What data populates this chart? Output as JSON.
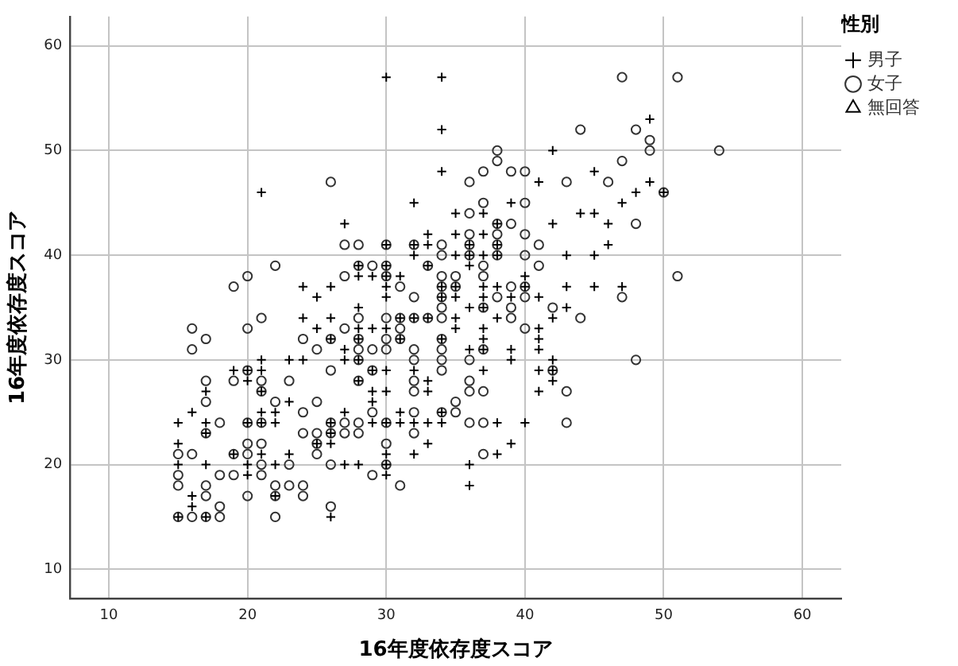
{
  "chart_data": {
    "type": "scatter",
    "xlabel": "16年度依存度スコア",
    "ylabel": "16年度依存度スコア",
    "legend_title": "性別",
    "xlim": [
      7.2,
      62.8
    ],
    "ylim": [
      7.2,
      62.8
    ],
    "xticks": [
      10,
      20,
      30,
      40,
      50,
      60
    ],
    "yticks": [
      10,
      20,
      30,
      40,
      50,
      60
    ],
    "grid": true,
    "legend": "top right",
    "series": [
      {
        "name": "男子",
        "color": "#000000",
        "marker": "cross",
        "x": [
          30,
          34,
          34,
          34,
          21,
          32,
          35,
          27,
          33,
          35,
          30,
          32,
          33,
          32,
          35,
          28,
          30,
          33,
          28,
          29,
          30,
          31,
          24,
          26,
          30,
          34,
          35,
          25,
          30,
          34,
          35,
          28,
          24,
          26,
          31,
          32,
          33,
          35,
          49,
          42,
          45,
          41,
          49,
          48,
          50,
          39,
          47,
          37,
          44,
          45,
          38,
          42,
          46,
          37,
          36,
          38,
          46,
          36,
          37,
          38,
          43,
          45,
          36,
          40,
          37,
          38,
          40,
          43,
          45,
          47,
          37,
          39,
          41,
          36,
          37,
          43,
          38,
          42,
          25,
          28,
          29,
          30,
          35,
          26,
          28,
          31,
          34,
          27,
          21,
          23,
          24,
          27,
          28,
          19,
          20,
          21,
          29,
          30,
          32,
          20,
          28,
          33,
          17,
          21,
          29,
          30,
          33,
          23,
          29,
          16,
          21,
          22,
          27,
          31,
          34,
          15,
          17,
          20,
          21,
          22,
          26,
          29,
          30,
          31,
          32,
          33,
          34,
          17,
          26,
          15,
          25,
          26,
          33,
          19,
          21,
          23,
          30,
          32,
          15,
          17,
          20,
          22,
          27,
          28,
          30,
          20,
          30,
          16,
          22,
          16,
          15,
          17,
          26,
          37,
          41,
          37,
          41,
          36,
          37,
          39,
          41,
          39,
          42,
          37,
          41,
          42,
          42,
          41,
          38,
          40,
          39,
          38,
          36,
          36
        ],
        "values": [
          57,
          57,
          52,
          48,
          46,
          45,
          44,
          43,
          42,
          42,
          41,
          41,
          41,
          40,
          40,
          39,
          39,
          39,
          38,
          38,
          38,
          38,
          37,
          37,
          37,
          37,
          37,
          36,
          36,
          36,
          36,
          35,
          34,
          34,
          34,
          34,
          34,
          34,
          53,
          50,
          48,
          47,
          47,
          46,
          46,
          45,
          45,
          44,
          44,
          44,
          43,
          43,
          43,
          42,
          41,
          41,
          41,
          40,
          40,
          40,
          40,
          40,
          39,
          38,
          37,
          37,
          37,
          37,
          37,
          37,
          36,
          36,
          36,
          35,
          35,
          35,
          34,
          34,
          33,
          33,
          33,
          33,
          33,
          32,
          32,
          32,
          32,
          31,
          30,
          30,
          30,
          30,
          30,
          29,
          29,
          29,
          29,
          29,
          29,
          28,
          28,
          28,
          27,
          27,
          27,
          27,
          27,
          26,
          26,
          25,
          25,
          25,
          25,
          25,
          25,
          24,
          24,
          24,
          24,
          24,
          24,
          24,
          24,
          24,
          24,
          24,
          24,
          23,
          23,
          22,
          22,
          22,
          22,
          21,
          21,
          21,
          21,
          21,
          20,
          20,
          20,
          20,
          20,
          20,
          20,
          19,
          19,
          17,
          17,
          16,
          15,
          15,
          15,
          33,
          33,
          32,
          32,
          31,
          31,
          31,
          31,
          30,
          30,
          29,
          29,
          29,
          28,
          27,
          24,
          24,
          22,
          21,
          20,
          18
        ]
      },
      {
        "name": "女子",
        "color": "#333333",
        "marker": "circle",
        "x": [
          26,
          27,
          28,
          30,
          32,
          34,
          34,
          22,
          28,
          29,
          30,
          33,
          20,
          27,
          30,
          34,
          35,
          19,
          31,
          34,
          35,
          32,
          34,
          34,
          21,
          28,
          30,
          31,
          32,
          33,
          34,
          47,
          51,
          44,
          48,
          49,
          38,
          49,
          54,
          38,
          47,
          37,
          39,
          40,
          36,
          43,
          46,
          50,
          37,
          40,
          36,
          38,
          39,
          48,
          36,
          38,
          40,
          36,
          38,
          41,
          36,
          38,
          40,
          37,
          41,
          37,
          51,
          39,
          40,
          38,
          40,
          47,
          37,
          39,
          42,
          39,
          44,
          16,
          20,
          27,
          31,
          17,
          24,
          26,
          28,
          30,
          31,
          34,
          16,
          25,
          28,
          29,
          30,
          32,
          34,
          28,
          32,
          34,
          20,
          26,
          29,
          34,
          17,
          19,
          21,
          23,
          28,
          32,
          21,
          32,
          17,
          22,
          25,
          35,
          24,
          29,
          32,
          34,
          35,
          18,
          20,
          21,
          26,
          27,
          28,
          30,
          17,
          24,
          25,
          26,
          27,
          28,
          32,
          20,
          21,
          25,
          30,
          15,
          16,
          19,
          20,
          25,
          21,
          23,
          26,
          30,
          15,
          18,
          19,
          21,
          29,
          15,
          17,
          22,
          23,
          24,
          31,
          17,
          20,
          22,
          24,
          18,
          26,
          15,
          16,
          17,
          18,
          22,
          40,
          37,
          36,
          48,
          42,
          36,
          36,
          37,
          43,
          36,
          37,
          43,
          37
        ],
        "values": [
          47,
          41,
          41,
          41,
          41,
          41,
          40,
          39,
          39,
          39,
          39,
          39,
          38,
          38,
          38,
          38,
          38,
          37,
          37,
          37,
          37,
          36,
          36,
          35,
          34,
          34,
          34,
          34,
          34,
          34,
          34,
          57,
          57,
          52,
          52,
          51,
          50,
          50,
          50,
          49,
          49,
          48,
          48,
          48,
          47,
          47,
          47,
          46,
          45,
          45,
          44,
          43,
          43,
          43,
          42,
          42,
          42,
          41,
          41,
          41,
          40,
          40,
          40,
          39,
          39,
          38,
          38,
          37,
          37,
          36,
          36,
          36,
          35,
          35,
          35,
          34,
          34,
          33,
          33,
          33,
          33,
          32,
          32,
          32,
          32,
          32,
          32,
          32,
          31,
          31,
          31,
          31,
          31,
          31,
          31,
          30,
          30,
          30,
          29,
          29,
          29,
          29,
          28,
          28,
          28,
          28,
          28,
          28,
          27,
          27,
          26,
          26,
          26,
          26,
          25,
          25,
          25,
          25,
          25,
          24,
          24,
          24,
          24,
          24,
          24,
          24,
          23,
          23,
          23,
          23,
          23,
          23,
          23,
          22,
          22,
          22,
          22,
          21,
          21,
          21,
          21,
          21,
          20,
          20,
          20,
          20,
          19,
          19,
          19,
          19,
          19,
          18,
          18,
          18,
          18,
          18,
          18,
          17,
          17,
          17,
          17,
          16,
          16,
          15,
          15,
          15,
          15,
          15,
          33,
          31,
          30,
          30,
          29,
          28,
          27,
          27,
          27,
          24,
          24,
          24,
          21
        ]
      },
      {
        "name": "無回答",
        "color": "#000000",
        "marker": "triangle"
      }
    ]
  }
}
